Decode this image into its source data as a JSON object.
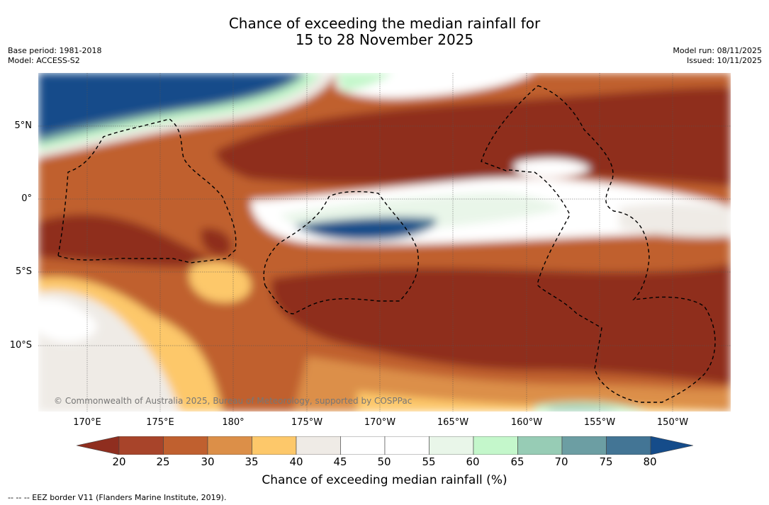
{
  "title": {
    "line1": "Chance of exceeding the median rainfall for",
    "line2": "15 to 28 November 2025"
  },
  "meta_left": {
    "base_period": "Base period: 1981-2018",
    "model": "Model: ACCESS-S2"
  },
  "meta_right": {
    "model_run": "Model run: 08/11/2025",
    "issued": "Issued: 10/11/2025"
  },
  "map": {
    "lat_labels": [
      "5°N",
      "0°",
      "5°S",
      "10°S"
    ],
    "lon_labels": [
      "170°E",
      "175°E",
      "180°",
      "175°W",
      "170°W",
      "165°W",
      "160°W",
      "155°W",
      "150°W"
    ],
    "copyright": "© Commonwealth of Australia 2025, Bureau of Meteorology, supported by COSPPac"
  },
  "colorbar": {
    "ticks": [
      "20",
      "25",
      "30",
      "35",
      "40",
      "45",
      "50",
      "55",
      "60",
      "65",
      "70",
      "75",
      "80"
    ],
    "colors": [
      "#8f2e1f",
      "#a8442a",
      "#c0602f",
      "#dc8f48",
      "#fdc86a",
      "#efebe6",
      "#ffffff",
      "#ffffff",
      "#e9f6e9",
      "#c4f7cb",
      "#97ccb5",
      "#6c9ea3",
      "#437595",
      "#154c8a"
    ],
    "label": "Chance of exceeding median rainfall (%)"
  },
  "footnote": "--  --  -- EEZ border V11 (Flanders Marine Institute, 2019)."
}
